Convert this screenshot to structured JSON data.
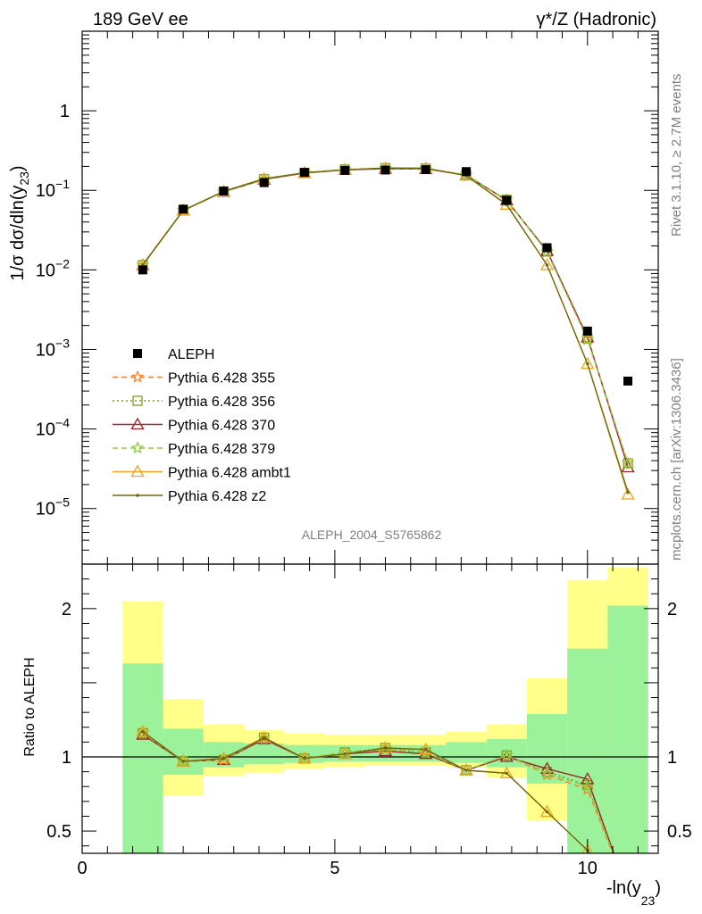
{
  "header": {
    "left_label": "189 GeV ee",
    "right_label": "γ*/Z (Hadronic)",
    "watermark": "ALEPH_2004_S5765862",
    "side_rivet": "Rivet 3.1.10, ≥ 2.7M events",
    "side_mcplots": "mcplots.cern.ch [arXiv:1306.3436]"
  },
  "axis_labels": {
    "y_main": "1/σ dσ/dln(y23)",
    "y_ratio": "Ratio to ALEPH",
    "x": "-ln(y23)"
  },
  "main_ticks": {
    "y": [
      {
        "value": 1e-05,
        "base": "10",
        "exp": "−5"
      },
      {
        "value": 0.0001,
        "base": "10",
        "exp": "−4"
      },
      {
        "value": 0.001,
        "base": "10",
        "exp": "−3"
      },
      {
        "value": 0.01,
        "base": "10",
        "exp": "−2"
      },
      {
        "value": 0.1,
        "base": "10",
        "exp": "−1"
      },
      {
        "value": 1,
        "base": "1",
        "exp": ""
      }
    ]
  },
  "ratio_ticks": {
    "y": [
      {
        "value": 0.5,
        "label": "0.5"
      },
      {
        "value": 1,
        "label": "1"
      },
      {
        "value": 2,
        "label": "2"
      }
    ]
  },
  "x_ticks": [
    {
      "value": 0,
      "label": "0"
    },
    {
      "value": 5,
      "label": "5"
    },
    {
      "value": 10,
      "label": "10"
    }
  ],
  "legend": [
    {
      "label": "ALEPH",
      "series": "data"
    },
    {
      "label": "Pythia 6.428 355",
      "series": "p355"
    },
    {
      "label": "Pythia 6.428 356",
      "series": "p356"
    },
    {
      "label": "Pythia 6.428 370",
      "series": "p370"
    },
    {
      "label": "Pythia 6.428 379",
      "series": "p379"
    },
    {
      "label": "Pythia 6.428 ambt1",
      "series": "ambt1"
    },
    {
      "label": "Pythia 6.428 z2",
      "series": "z2"
    }
  ],
  "chart_data": [
    {
      "type": "line",
      "panel": "main",
      "yscale": "log",
      "xlim": [
        0,
        11.4
      ],
      "ylim": [
        2e-06,
        10
      ],
      "bin_edges": [
        0.8,
        1.6,
        2.4,
        3.2,
        4.0,
        4.8,
        5.6,
        6.4,
        7.2,
        8.0,
        8.8,
        9.6,
        10.4,
        11.2
      ],
      "x": [
        1.2,
        2.0,
        2.8,
        3.6,
        4.4,
        5.2,
        6.0,
        6.8,
        7.6,
        8.4,
        9.2,
        10.0,
        10.8
      ],
      "data": {
        "name": "ALEPH",
        "color": "#000000",
        "y": [
          0.01,
          0.058,
          0.098,
          0.125,
          0.168,
          0.178,
          0.18,
          0.182,
          0.172,
          0.075,
          0.019,
          0.0017,
          0.0004
        ]
      },
      "series": [
        {
          "id": "p355",
          "name": "Pythia 6.428 355",
          "color": "#ff7f2a",
          "dash": "6,4",
          "marker": "star",
          "y": [
            0.0115,
            0.056,
            0.096,
            0.138,
            0.166,
            0.183,
            0.189,
            0.187,
            0.156,
            0.076,
            0.0168,
            0.00133,
            3.7e-05
          ]
        },
        {
          "id": "p356",
          "name": "Pythia 6.428 356",
          "color": "#7f9f1f",
          "dash": "2,3",
          "marker": "square",
          "y": [
            0.0115,
            0.056,
            0.096,
            0.138,
            0.166,
            0.183,
            0.19,
            0.188,
            0.156,
            0.076,
            0.017,
            0.00137,
            3.7e-05
          ]
        },
        {
          "id": "p370",
          "name": "Pythia 6.428 370",
          "color": "#a0202a",
          "dash": "",
          "marker": "triangle",
          "y": [
            0.0115,
            0.056,
            0.096,
            0.137,
            0.165,
            0.181,
            0.187,
            0.186,
            0.155,
            0.075,
            0.0173,
            0.00142,
            3.3e-05
          ]
        },
        {
          "id": "p379",
          "name": "Pythia 6.428 379",
          "color": "#8fcf3f",
          "dash": "6,4",
          "marker": "star",
          "y": [
            0.0115,
            0.056,
            0.096,
            0.138,
            0.166,
            0.183,
            0.189,
            0.188,
            0.156,
            0.076,
            0.0168,
            0.00135,
            3.7e-05
          ]
        },
        {
          "id": "ambt1",
          "name": "Pythia 6.428 ambt1",
          "color": "#f2a51b",
          "dash": "",
          "marker": "triangle",
          "y": [
            0.0116,
            0.056,
            0.097,
            0.14,
            0.166,
            0.181,
            0.191,
            0.19,
            0.153,
            0.066,
            0.0115,
            0.00066,
            1.5e-05
          ]
        },
        {
          "id": "z2",
          "name": "Pythia 6.428 z2",
          "color": "#6f6a10",
          "dash": "",
          "marker": "dot",
          "y": [
            0.0116,
            0.056,
            0.097,
            0.14,
            0.166,
            0.181,
            0.191,
            0.19,
            0.153,
            0.066,
            0.0115,
            0.00066,
            1.6e-05
          ]
        }
      ]
    },
    {
      "type": "line",
      "panel": "ratio",
      "ylabel": "Ratio to ALEPH",
      "xlim": [
        0,
        11.4
      ],
      "ylim": [
        0.35,
        2.3
      ],
      "reference_line": 1,
      "bands": {
        "bin_edges": [
          0.8,
          1.6,
          2.4,
          3.2,
          4.0,
          4.8,
          5.6,
          6.4,
          7.2,
          8.0,
          8.8,
          9.6,
          10.4,
          11.2
        ],
        "yellow_lo": [
          0.43,
          0.74,
          0.87,
          0.89,
          0.92,
          0.93,
          0.94,
          0.94,
          0.93,
          0.86,
          0.57,
          0.3,
          0.3
        ],
        "yellow_hi": [
          2.05,
          1.39,
          1.22,
          1.18,
          1.16,
          1.15,
          1.15,
          1.15,
          1.17,
          1.22,
          1.53,
          2.19,
          2.3
        ],
        "green_lo": [
          0.3,
          0.88,
          0.93,
          0.95,
          0.96,
          0.97,
          0.97,
          0.97,
          0.96,
          0.93,
          0.82,
          0.3,
          0.3
        ],
        "green_hi": [
          1.63,
          1.19,
          1.1,
          1.09,
          1.08,
          1.08,
          1.08,
          1.08,
          1.1,
          1.12,
          1.29,
          1.73,
          2.02
        ]
      },
      "x": [
        1.2,
        2.0,
        2.8,
        3.6,
        4.4,
        5.2,
        6.0,
        6.8,
        7.6,
        8.4,
        9.2,
        10.0,
        10.8
      ],
      "series": [
        {
          "id": "p355",
          "color": "#ff7f2a",
          "dash": "6,4",
          "marker": "star",
          "y": [
            1.16,
            0.97,
            0.98,
            1.13,
            0.99,
            1.03,
            1.05,
            1.03,
            0.91,
            1.01,
            0.88,
            0.78,
            0.09
          ]
        },
        {
          "id": "p356",
          "color": "#7f9f1f",
          "dash": "2,3",
          "marker": "square",
          "y": [
            1.16,
            0.97,
            0.98,
            1.13,
            0.99,
            1.03,
            1.06,
            1.03,
            0.91,
            1.01,
            0.9,
            0.81,
            0.09
          ]
        },
        {
          "id": "p370",
          "color": "#a0202a",
          "dash": "",
          "marker": "triangle",
          "y": [
            1.15,
            0.97,
            0.98,
            1.12,
            0.99,
            1.02,
            1.04,
            1.02,
            0.91,
            1.0,
            0.92,
            0.85,
            0.08
          ]
        },
        {
          "id": "p379",
          "color": "#8fcf3f",
          "dash": "6,4",
          "marker": "star",
          "y": [
            1.16,
            0.97,
            0.98,
            1.13,
            0.99,
            1.03,
            1.05,
            1.03,
            0.91,
            1.01,
            0.89,
            0.8,
            0.09
          ]
        },
        {
          "id": "ambt1",
          "color": "#f2a51b",
          "dash": "",
          "marker": "triangle",
          "y": [
            1.17,
            0.97,
            0.99,
            1.13,
            0.99,
            1.02,
            1.06,
            1.05,
            0.91,
            0.89,
            0.63,
            0.37,
            0.04
          ]
        },
        {
          "id": "z2",
          "color": "#6f6a10",
          "dash": "",
          "marker": "dot",
          "y": [
            1.17,
            0.97,
            0.99,
            1.13,
            0.99,
            1.02,
            1.06,
            1.05,
            0.91,
            0.89,
            0.63,
            0.37,
            0.04
          ]
        }
      ]
    }
  ]
}
